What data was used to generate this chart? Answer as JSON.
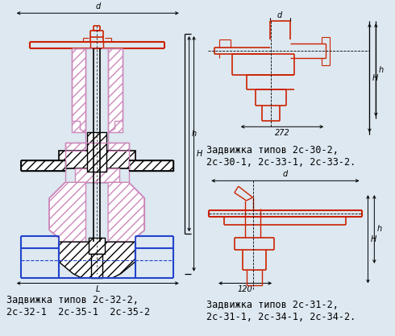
{
  "bg_color": "#dde8f0",
  "BK": "#000000",
  "RD": "#cc2200",
  "BL": "#2244cc",
  "PK": "#cc88bb",
  "title_left_line1": "Задвижка типов 2с-32-2,",
  "title_left_line2": "2с-32-1  2с-35-1  2с-35-2",
  "title_rt_line1": "Задвижка типов 2с-30-2,",
  "title_rt_line2": "2с-30-1, 2с-33-1, 2с-33-2.",
  "title_rb_line1": "Задвижка типов 2с-31-2,",
  "title_rb_line2": "2с-31-1, 2с-34-1, 2с-34-2.",
  "font_size": 8.5
}
